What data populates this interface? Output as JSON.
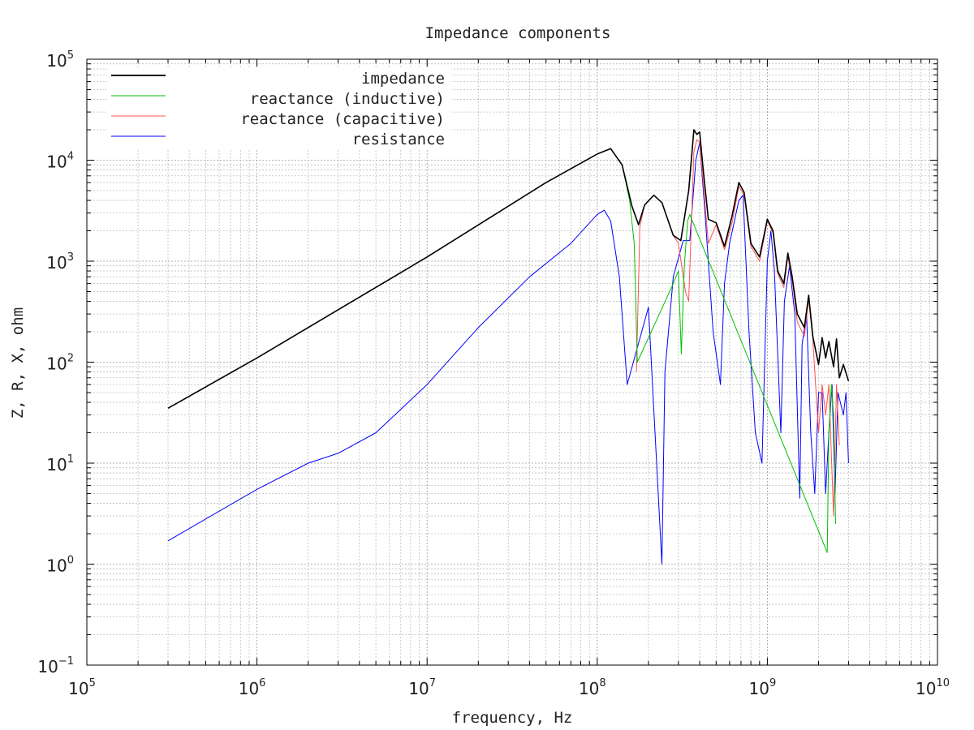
{
  "chart_data": {
    "type": "line",
    "title": "Impedance components",
    "xlabel": "frequency, Hz",
    "ylabel": "Z, R, X, ohm",
    "x_scale": "log",
    "y_scale": "log",
    "xlim": [
      100000,
      10000000000
    ],
    "ylim": [
      0.1,
      100000
    ],
    "x_ticks": [
      {
        "base": "10",
        "exp": "5"
      },
      {
        "base": "10",
        "exp": "6"
      },
      {
        "base": "10",
        "exp": "7"
      },
      {
        "base": "10",
        "exp": "8"
      },
      {
        "base": "10",
        "exp": "9"
      },
      {
        "base": "10",
        "exp": "10"
      }
    ],
    "y_ticks": [
      {
        "base": "10",
        "exp": "−1"
      },
      {
        "base": "10",
        "exp": "0"
      },
      {
        "base": "10",
        "exp": "1"
      },
      {
        "base": "10",
        "exp": "2"
      },
      {
        "base": "10",
        "exp": "3"
      },
      {
        "base": "10",
        "exp": "4"
      },
      {
        "base": "10",
        "exp": "5"
      }
    ],
    "grid": true,
    "legend_position": "top-left",
    "series": [
      {
        "name": "impedance",
        "color": "#000000",
        "x": [
          300000,
          1000000,
          10000000,
          50000000,
          100000000,
          120000000,
          140000000,
          160000000,
          175000000,
          190000000,
          215000000,
          240000000,
          280000000,
          310000000,
          345000000,
          370000000,
          385000000,
          400000000,
          420000000,
          450000000,
          500000000,
          560000000,
          620000000,
          680000000,
          730000000,
          800000000,
          900000000,
          1000000000,
          1080000000,
          1150000000,
          1250000000,
          1320000000,
          1400000000,
          1500000000,
          1650000000,
          1750000000,
          1850000000,
          2000000000,
          2100000000,
          2200000000,
          2300000000,
          2450000000,
          2550000000,
          2650000000,
          2800000000,
          3000000000
        ],
        "y": [
          35,
          110,
          1100,
          6000,
          11500,
          13000,
          9000,
          3500,
          2300,
          3600,
          4500,
          3800,
          1800,
          1600,
          5000,
          20000,
          18000,
          19000,
          8000,
          2600,
          2400,
          1400,
          2800,
          6000,
          4800,
          1500,
          1100,
          2600,
          2000,
          800,
          600,
          1200,
          700,
          300,
          220,
          460,
          180,
          95,
          175,
          110,
          160,
          90,
          170,
          70,
          95,
          65
        ]
      },
      {
        "name": "reactance (inductive)",
        "color": "#00c000",
        "x": [
          300000,
          1000000,
          10000000,
          50000000,
          100000000,
          120000000,
          140000000,
          155000000,
          165000000,
          172000000,
          280000000,
          300000000,
          312000000,
          325000000,
          340000000,
          350000000,
          2250000000,
          2300000000,
          2380000000,
          2450000000,
          2520000000
        ],
        "y": [
          35,
          110,
          1100,
          6000,
          11500,
          13000,
          9000,
          4000,
          1500,
          100,
          600,
          800,
          120,
          900,
          2500,
          2900,
          1.3,
          20,
          60,
          30,
          2.5
        ]
      },
      {
        "name": "reactance (capacitive)",
        "color": "#ff5050",
        "x": [
          170000000,
          178000000,
          190000000,
          215000000,
          240000000,
          280000000,
          300000000,
          330000000,
          345000000,
          370000000,
          385000000,
          400000000,
          420000000,
          450000000,
          500000000,
          560000000,
          620000000,
          680000000,
          730000000,
          800000000,
          900000000,
          1000000000,
          1080000000,
          1150000000,
          1250000000,
          1320000000,
          1400000000,
          1500000000,
          1650000000,
          1750000000,
          1850000000,
          2000000000,
          2100000000,
          2200000000,
          2300000000,
          2450000000,
          2550000000,
          2650000000
        ],
        "y": [
          80,
          2200,
          3600,
          4500,
          3800,
          1800,
          1500,
          500,
          400,
          12000,
          16000,
          15000,
          6000,
          1500,
          2300,
          1300,
          2400,
          5500,
          4500,
          1400,
          1000,
          2500,
          1900,
          750,
          550,
          1100,
          650,
          250,
          180,
          420,
          170,
          20,
          60,
          30,
          60,
          3,
          60,
          15
        ]
      },
      {
        "name": "resistance",
        "color": "#0000ff",
        "x": [
          300000,
          500000,
          1000000,
          2000000,
          3000000,
          5000000,
          10000000,
          20000000,
          40000000,
          70000000,
          100000000,
          110000000,
          120000000,
          135000000,
          150000000,
          200000000,
          240000000,
          250000000,
          280000000,
          320000000,
          350000000,
          380000000,
          400000000,
          430000000,
          480000000,
          530000000,
          560000000,
          600000000,
          680000000,
          720000000,
          780000000,
          850000000,
          930000000,
          1000000000,
          1050000000,
          1100000000,
          1200000000,
          1260000000,
          1350000000,
          1450000000,
          1550000000,
          1600000000,
          1700000000,
          1800000000,
          1900000000,
          2000000000,
          2100000000,
          2200000000,
          2300000000,
          2400000000,
          2500000000,
          2600000000,
          2800000000,
          2900000000,
          3000000000
        ],
        "y": [
          1.7,
          2.8,
          5.5,
          10,
          12.5,
          20,
          60,
          220,
          700,
          1500,
          2900,
          3200,
          2500,
          700,
          60,
          350,
          1,
          80,
          700,
          1600,
          1600,
          10000,
          15000,
          3000,
          200,
          60,
          600,
          1500,
          4000,
          4500,
          200,
          20,
          10,
          1000,
          2000,
          800,
          20,
          400,
          900,
          300,
          4.5,
          150,
          300,
          20,
          5,
          50,
          50,
          5,
          20,
          60,
          5,
          50,
          30,
          50,
          10
        ]
      }
    ]
  }
}
